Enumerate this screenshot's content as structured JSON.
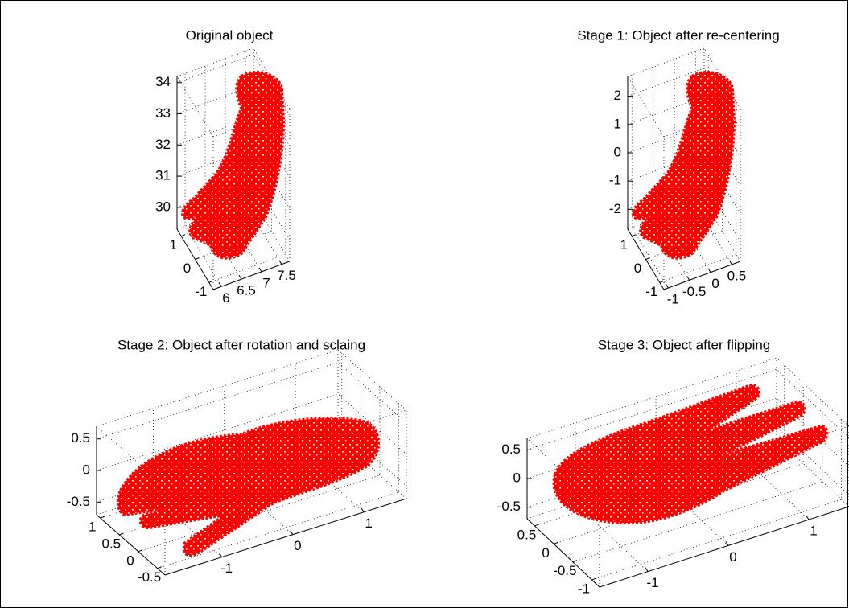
{
  "chart_data": [
    {
      "type": "scatter3d",
      "title": "Original object",
      "xlim": [
        5.8,
        7.7
      ],
      "xticks": [
        6,
        6.5,
        7,
        7.5
      ],
      "ylim": [
        -1.3,
        1.3
      ],
      "yticks": [
        -1,
        0,
        1
      ],
      "zlim": [
        29.3,
        34.2
      ],
      "zticks": [
        30,
        31,
        32,
        33,
        34
      ],
      "color": "#ff0000",
      "grid": true
    },
    {
      "type": "scatter3d",
      "title": "Stage 1: Object after re-centering",
      "xlim": [
        -1.1,
        0.7
      ],
      "xticks": [
        -1,
        -0.5,
        0,
        0.5
      ],
      "ylim": [
        -1.3,
        1.3
      ],
      "yticks": [
        -1,
        0,
        1
      ],
      "zlim": [
        -2.7,
        2.7
      ],
      "zticks": [
        -2,
        -1,
        0,
        1,
        2
      ],
      "color": "#ff0000",
      "grid": true
    },
    {
      "type": "scatter3d",
      "title": "Stage 2: Object after rotation and sclaing",
      "xlim": [
        -1.8,
        1.6
      ],
      "xticks": [
        -1,
        0,
        1
      ],
      "ylim": [
        -0.7,
        1.1
      ],
      "yticks": [
        -0.5,
        0,
        0.5,
        1
      ],
      "zlim": [
        -0.7,
        0.7
      ],
      "zticks": [
        -0.5,
        0,
        0.5
      ],
      "color": "#ff0000",
      "grid": true
    },
    {
      "type": "scatter3d",
      "title": "Stage 3: Object after flipping",
      "xlim": [
        -1.6,
        1.5
      ],
      "xticks": [
        -1,
        0,
        1
      ],
      "ylim": [
        -1.2,
        0.7
      ],
      "yticks": [
        -1,
        -0.5,
        0,
        0.5
      ],
      "zlim": [
        -0.7,
        0.7
      ],
      "zticks": [
        -0.5,
        0,
        0.5
      ],
      "color": "#ff0000",
      "grid": true
    }
  ]
}
